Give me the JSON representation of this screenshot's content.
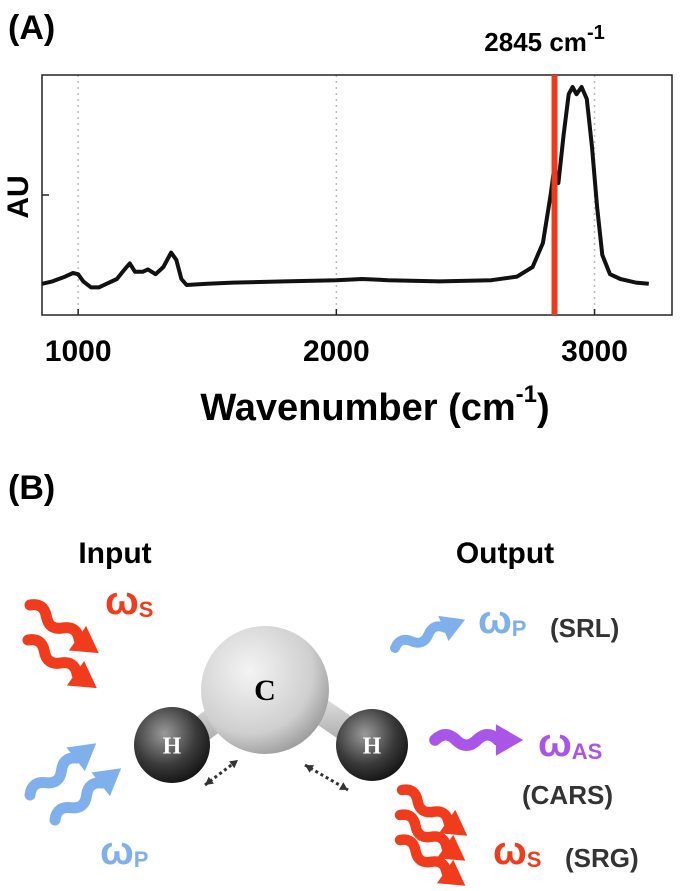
{
  "panels": {
    "a": "(A)",
    "b": "(B)"
  },
  "chart_data": {
    "type": "line",
    "ylabel": "AU",
    "xlabel": {
      "before": "Wavenumber (cm",
      "sup": "-1",
      "after": ")"
    },
    "x": [
      860,
      900,
      950,
      980,
      1000,
      1020,
      1050,
      1080,
      1110,
      1150,
      1180,
      1200,
      1220,
      1250,
      1270,
      1300,
      1330,
      1360,
      1380,
      1400,
      1420,
      1500,
      1600,
      1800,
      2000,
      2100,
      2200,
      2400,
      2600,
      2700,
      2760,
      2800,
      2830,
      2845,
      2860,
      2880,
      2900,
      2915,
      2930,
      2950,
      2970,
      2990,
      3010,
      3030,
      3060,
      3100,
      3160,
      3210
    ],
    "values": [
      0.13,
      0.14,
      0.16,
      0.175,
      0.17,
      0.14,
      0.115,
      0.115,
      0.13,
      0.15,
      0.19,
      0.215,
      0.18,
      0.18,
      0.19,
      0.17,
      0.2,
      0.26,
      0.23,
      0.15,
      0.125,
      0.13,
      0.135,
      0.14,
      0.145,
      0.15,
      0.145,
      0.14,
      0.145,
      0.16,
      0.2,
      0.3,
      0.5,
      0.62,
      0.55,
      0.75,
      0.92,
      0.95,
      0.92,
      0.95,
      0.9,
      0.7,
      0.45,
      0.25,
      0.17,
      0.15,
      0.135,
      0.13
    ],
    "color": "#111111",
    "xlim": [
      860,
      3300
    ],
    "ylim": [
      0,
      1
    ],
    "xticks": [
      1000,
      2000,
      3000
    ],
    "yticks": [
      0.5
    ],
    "grid": true,
    "marker": {
      "x": 2845,
      "color": "#ee3a1c",
      "label": "2845 cm",
      "label_sup": "-1"
    }
  },
  "diagram": {
    "input": "Input",
    "output": "Output",
    "atoms": [
      "C",
      "H",
      "H"
    ],
    "beams": [
      {
        "symbol": "ω",
        "sub": "S"
      },
      {
        "symbol": "ω",
        "sub": "P"
      },
      {
        "symbol": "ω",
        "sub": "P",
        "note": "(SRL)"
      },
      {
        "symbol": "ω",
        "sub": "AS",
        "note": "(CARS)"
      },
      {
        "symbol": "ω",
        "sub": "S",
        "note": "(SRG)"
      }
    ]
  }
}
